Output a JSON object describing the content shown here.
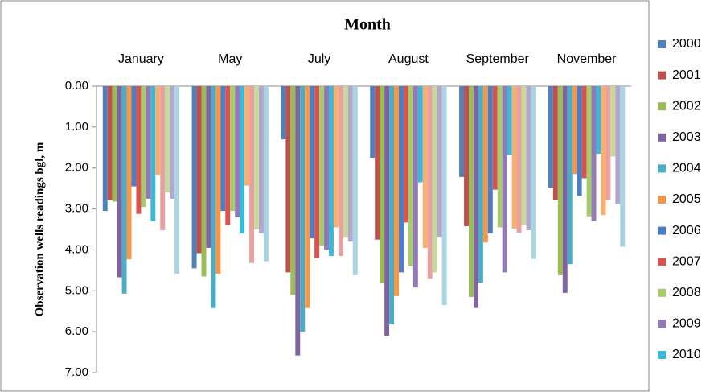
{
  "chart_data": {
    "type": "bar",
    "title": "Month",
    "y_label": "Observation wells readings bgl, m",
    "categories": [
      "January",
      "May",
      "July",
      "August",
      "September",
      "November"
    ],
    "ylim": [
      0,
      7
    ],
    "inverted": true,
    "yticks": [
      {
        "value": 0,
        "label": "0.00"
      },
      {
        "value": 1,
        "label": "1.00"
      },
      {
        "value": 2,
        "label": "2.00"
      },
      {
        "value": 3,
        "label": "3.00"
      },
      {
        "value": 4,
        "label": "4.00"
      },
      {
        "value": 5,
        "label": "5.00"
      },
      {
        "value": 6,
        "label": "6.00"
      },
      {
        "value": 7,
        "label": "7.00"
      }
    ],
    "series": [
      {
        "name": "2000",
        "color": "#4F81BD",
        "values": [
          3.05,
          4.45,
          1.3,
          1.75,
          2.22,
          2.48
        ]
      },
      {
        "name": "2001",
        "color": "#C0504D",
        "values": [
          2.78,
          4.08,
          4.55,
          3.75,
          3.42,
          2.78
        ]
      },
      {
        "name": "2002",
        "color": "#9BBB59",
        "values": [
          2.82,
          4.65,
          5.1,
          4.82,
          5.15,
          4.62
        ]
      },
      {
        "name": "2003",
        "color": "#8064A2",
        "values": [
          4.67,
          3.95,
          6.58,
          6.1,
          5.42,
          5.05
        ]
      },
      {
        "name": "2004",
        "color": "#4BACC6",
        "values": [
          5.07,
          5.42,
          6.0,
          5.82,
          4.8,
          4.35
        ]
      },
      {
        "name": "2005",
        "color": "#F79646",
        "values": [
          4.23,
          4.58,
          5.42,
          5.13,
          3.82,
          2.15
        ]
      },
      {
        "name": "2006",
        "color": "#4A7FC8",
        "values": [
          2.45,
          3.05,
          3.72,
          4.55,
          3.6,
          2.68
        ]
      },
      {
        "name": "2007",
        "color": "#D9534F",
        "values": [
          3.12,
          3.4,
          4.2,
          3.33,
          2.53,
          2.25
        ]
      },
      {
        "name": "2008",
        "color": "#A8CC6B",
        "values": [
          2.95,
          3.05,
          3.9,
          4.4,
          3.45,
          3.18
        ]
      },
      {
        "name": "2009",
        "color": "#9479B8",
        "values": [
          2.75,
          3.2,
          4.0,
          4.92,
          4.55,
          3.3
        ]
      },
      {
        "name": "2010",
        "color": "#3CB8D8",
        "values": [
          3.3,
          3.6,
          4.15,
          2.35,
          1.68,
          1.65
        ]
      },
      {
        "color": "#F9AF6E",
        "values": [
          2.18,
          2.43,
          3.45,
          3.95,
          3.48,
          3.15
        ]
      },
      {
        "color": "#E8A0A0",
        "values": [
          3.52,
          4.32,
          4.15,
          4.7,
          3.58,
          2.78
        ]
      },
      {
        "color": "#C6DB9A",
        "values": [
          2.6,
          3.5,
          3.7,
          4.55,
          3.4,
          1.72
        ]
      },
      {
        "color": "#B4A6CC",
        "values": [
          2.75,
          3.6,
          3.8,
          3.7,
          3.52,
          2.88
        ]
      },
      {
        "color": "#A8D4E4",
        "values": [
          4.58,
          4.28,
          4.62,
          5.35,
          4.22,
          3.92
        ]
      }
    ]
  }
}
